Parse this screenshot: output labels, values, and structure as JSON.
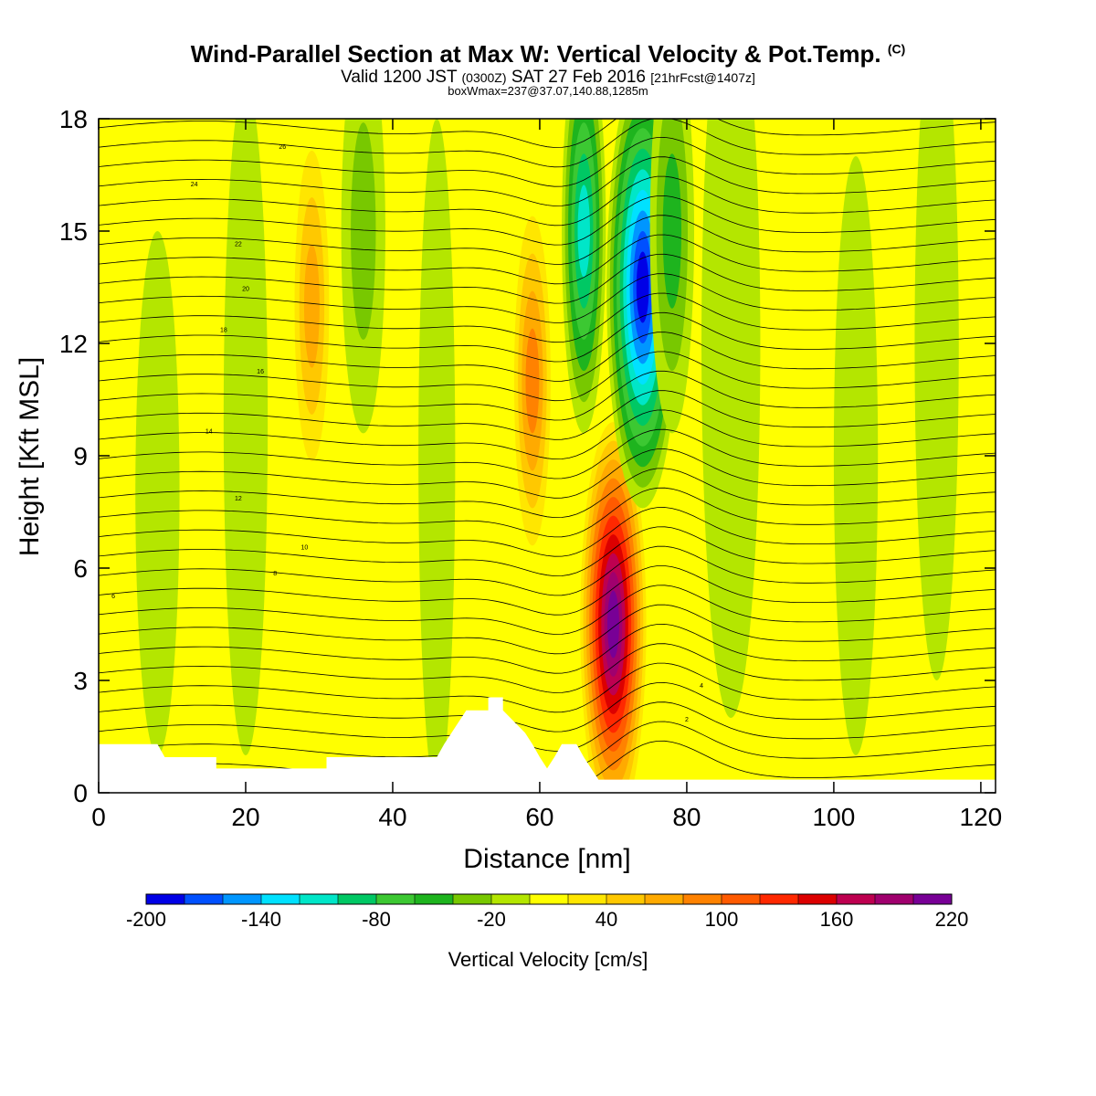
{
  "title": {
    "line1": "Wind-Parallel Section at Max W: Vertical Velocity & Pot.Temp.",
    "line1_mark": "(C)",
    "line2_a": "Valid 1200 JST",
    "line2_b": "(0300Z)",
    "line2_c": "SAT 27 Feb 2016",
    "line2_d": "[21hrFcst@1407z]",
    "line3": "boxWmax=237@37.07,140.88,1285m"
  },
  "chart_data": {
    "type": "heatmap",
    "xlabel": "Distance [nm]",
    "ylabel": "Height [Kft MSL]",
    "xlim": [
      0,
      122
    ],
    "ylim": [
      0,
      18
    ],
    "x_ticks": [
      "0",
      "20",
      "40",
      "60",
      "80",
      "100",
      "120"
    ],
    "y_ticks": [
      "0",
      "3",
      "6",
      "9",
      "12",
      "15",
      "18"
    ],
    "colorbar": {
      "title": "Vertical Velocity [cm/s]",
      "levels": [
        -200,
        -180,
        -160,
        -140,
        -120,
        -100,
        -80,
        -60,
        -40,
        -20,
        0,
        20,
        40,
        60,
        80,
        100,
        120,
        140,
        160,
        180,
        200,
        220
      ],
      "tick_labels": [
        "-200",
        "-140",
        "-80",
        "-20",
        "40",
        "100",
        "160",
        "220"
      ],
      "colors": [
        "#0000e6",
        "#0050ff",
        "#0096ff",
        "#00e1ff",
        "#00e6c8",
        "#00c864",
        "#3cc832",
        "#1eb41e",
        "#78c800",
        "#b4e600",
        "#ffff00",
        "#ffe600",
        "#ffc800",
        "#ffaa00",
        "#ff8200",
        "#ff5a00",
        "#ff2800",
        "#dc0000",
        "#be0050",
        "#a0006e",
        "#780096"
      ]
    },
    "vertical_velocity_features": [
      {
        "x": 70,
        "y": 4.5,
        "value": 220,
        "note": "max updraft"
      },
      {
        "x": 74,
        "y": 13.5,
        "value": -200,
        "note": "max downdraft"
      },
      {
        "x": 29,
        "y": 13,
        "value": 80
      },
      {
        "x": 59,
        "y": 11,
        "value": 90
      },
      {
        "x": 66,
        "y": 15,
        "value": -120
      },
      {
        "x": 36,
        "y": 15,
        "value": -40
      },
      {
        "x": 78,
        "y": 15,
        "value": -50
      }
    ],
    "potential_temperature_labels": [
      "26",
      "24",
      "22",
      "20",
      "18",
      "16",
      "14",
      "12",
      "10",
      "8",
      "6",
      "4",
      "2"
    ],
    "terrain_kft": [
      [
        0,
        1.3
      ],
      [
        8,
        1.3
      ],
      [
        9,
        0.95
      ],
      [
        16,
        0.95
      ],
      [
        16,
        0.65
      ],
      [
        31,
        0.65
      ],
      [
        31,
        0.95
      ],
      [
        46,
        0.95
      ],
      [
        47,
        1.3
      ],
      [
        48,
        1.6
      ],
      [
        49,
        1.9
      ],
      [
        50,
        2.2
      ],
      [
        53,
        2.2
      ],
      [
        53,
        2.55
      ],
      [
        55,
        2.55
      ],
      [
        55,
        2.2
      ],
      [
        58,
        1.6
      ],
      [
        59,
        1.3
      ],
      [
        60,
        0.95
      ],
      [
        61,
        0.65
      ],
      [
        62,
        0.95
      ],
      [
        63,
        1.3
      ],
      [
        65,
        1.3
      ],
      [
        66,
        0.95
      ],
      [
        67,
        0.65
      ],
      [
        68,
        0.35
      ],
      [
        122,
        0.35
      ]
    ]
  }
}
